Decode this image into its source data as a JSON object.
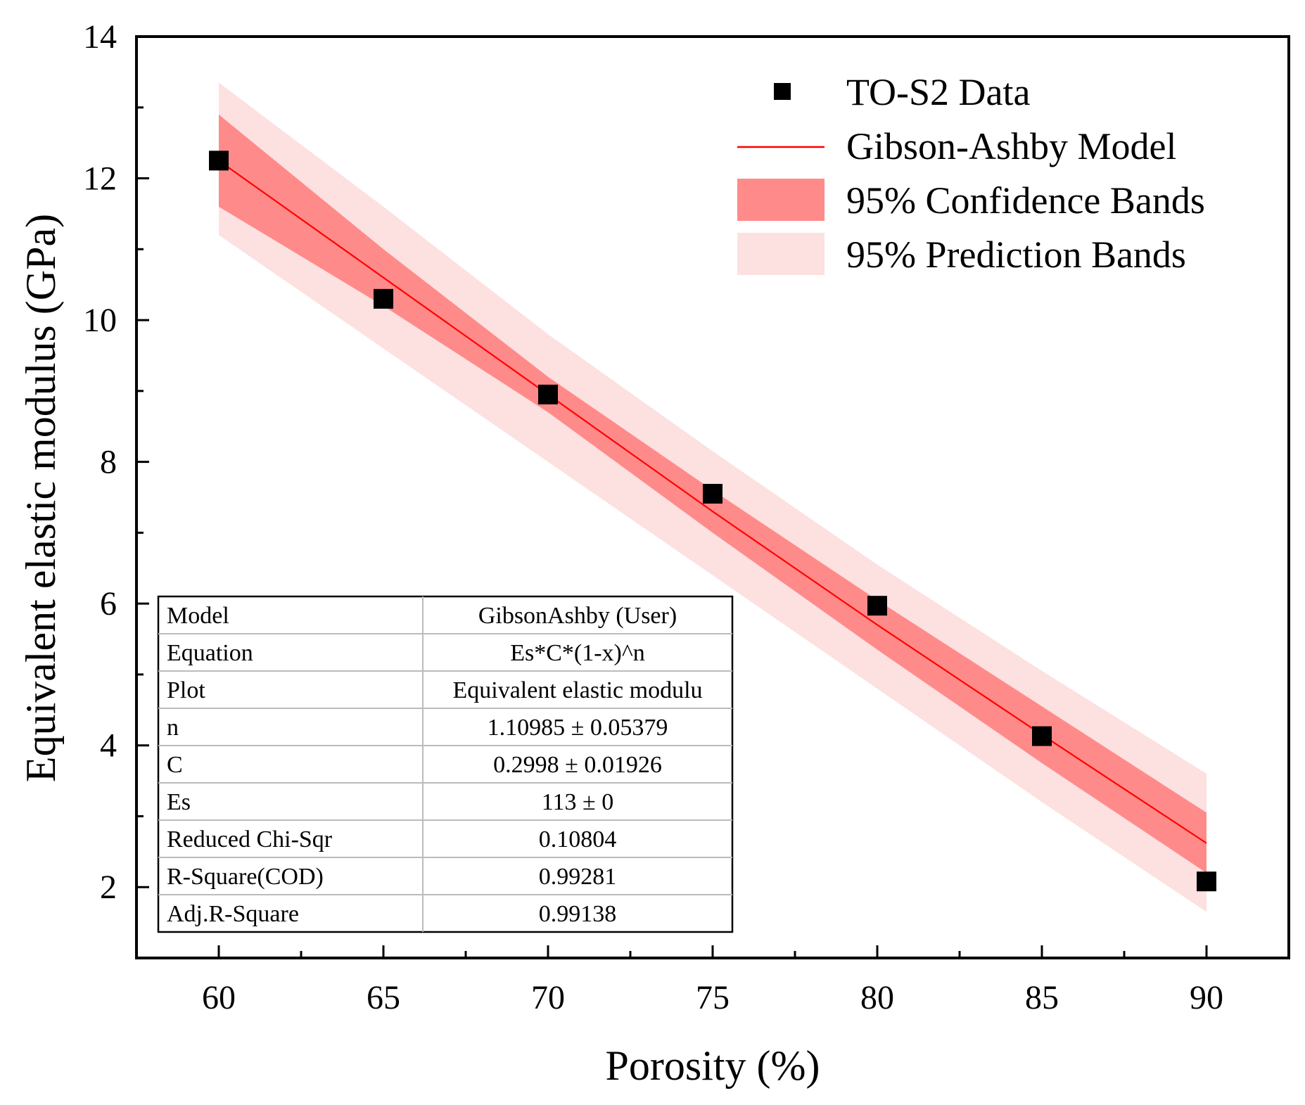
{
  "chart_data": {
    "type": "scatter",
    "xlabel": "Porosity (%)",
    "ylabel": "Equivalent elastic modulus (GPa)",
    "xlim": [
      57.5,
      92.5
    ],
    "ylim": [
      1.0,
      14.0
    ],
    "x_ticks": [
      60,
      65,
      70,
      75,
      80,
      85,
      90
    ],
    "y_ticks": [
      2,
      4,
      6,
      8,
      10,
      12,
      14
    ],
    "grid": false,
    "legend_position": "top-right",
    "series": [
      {
        "name": "TO-S2 Data",
        "kind": "scatter",
        "color": "#000000",
        "x": [
          60,
          65,
          70,
          75,
          80,
          85,
          90
        ],
        "y": [
          12.25,
          10.3,
          8.95,
          7.55,
          5.97,
          4.13,
          2.08
        ]
      },
      {
        "name": "Gibson-Ashby Model",
        "kind": "line",
        "color": "#ff0000",
        "x": [
          60,
          65,
          70,
          75,
          80,
          85,
          90
        ],
        "y": [
          12.25,
          10.6,
          8.95,
          7.3,
          5.7,
          4.15,
          2.62
        ]
      },
      {
        "name": "95% Confidence Bands",
        "kind": "band",
        "color": "#ff8a8a",
        "x": [
          60,
          65,
          70,
          75,
          80,
          85,
          90
        ],
        "lower": [
          11.6,
          10.2,
          8.7,
          7.0,
          5.35,
          3.75,
          2.2
        ],
        "upper": [
          12.9,
          11.0,
          9.2,
          7.6,
          6.05,
          4.55,
          3.05
        ]
      },
      {
        "name": "95% Prediction Bands",
        "kind": "band",
        "color": "#fde0e0",
        "x": [
          60,
          65,
          70,
          75,
          80,
          85,
          90
        ],
        "lower": [
          11.2,
          9.6,
          8.0,
          6.4,
          4.8,
          3.2,
          1.65
        ],
        "upper": [
          13.35,
          11.6,
          9.8,
          8.15,
          6.55,
          5.05,
          3.6
        ]
      }
    ],
    "fit_table": [
      {
        "label": "Model",
        "value": "GibsonAshby (User)"
      },
      {
        "label": "Equation",
        "value": "Es*C*(1-x)^n"
      },
      {
        "label": "Plot",
        "value": "Equivalent elastic modulu"
      },
      {
        "label": "n",
        "value": "1.10985 ± 0.05379"
      },
      {
        "label": "C",
        "value": "0.2998 ± 0.01926"
      },
      {
        "label": "Es",
        "value": "113 ± 0"
      },
      {
        "label": "Reduced Chi-Sqr",
        "value": "0.10804"
      },
      {
        "label": "R-Square(COD)",
        "value": "0.99281"
      },
      {
        "label": "Adj.R-Square",
        "value": "0.99138"
      }
    ]
  }
}
